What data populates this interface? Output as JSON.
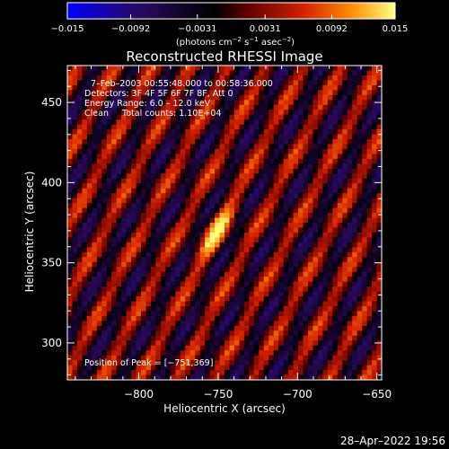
{
  "chart_data": {
    "type": "heatmap",
    "title": "Reconstructed RHESSI Image",
    "xlabel": "Heliocentric X (arcsec)",
    "ylabel": "Heliocentric Y (arcsec)",
    "xlim": [
      -845,
      -647
    ],
    "ylim": [
      277,
      473
    ],
    "xticks": [
      -800,
      -750,
      -700,
      -650
    ],
    "xtick_labels": [
      "−800",
      "−750",
      "−700",
      "−650"
    ],
    "yticks": [
      300,
      350,
      400,
      450
    ],
    "ytick_labels": [
      "300",
      "350",
      "400",
      "450"
    ],
    "colorbar": {
      "range": [
        -0.015,
        0.015
      ],
      "ticks": [
        -0.015,
        -0.0092,
        -0.0031,
        0.0031,
        0.0092,
        0.015
      ],
      "tick_labels": [
        "−0.015",
        "−0.0092",
        "−0.0031",
        "0.0031",
        "0.0092",
        "0.015"
      ],
      "unit_text": "(photons cm",
      "unit_sup1": "−2",
      "unit_mid": " s",
      "unit_sup2": "−1",
      "unit_mid2": " asec",
      "unit_sup3": "−2",
      "unit_end": ")"
    },
    "annotations": [
      "7–Feb–2003 00:55:48.000 to 00:58:36.000",
      "Detectors: 3F 4F 5F 6F 7F 8F, Att 0",
      "Energy Range: 6.0 – 12.0 keV",
      "Clean     Total counts: 1.10E+04"
    ],
    "peak_label": "Position of Peak = [−751,369]",
    "peak": {
      "x": -751,
      "y": 369,
      "value": 0.015
    },
    "stripe_angle_deg": 62,
    "stripe_period_arcsec": 21,
    "colormap": [
      "#0000ff",
      "#3a0a5a",
      "#000000",
      "#6a0000",
      "#e02a00",
      "#ff8c00",
      "#ffff60"
    ]
  },
  "footer": {
    "timestamp": "28–Apr–2022 19:56"
  }
}
